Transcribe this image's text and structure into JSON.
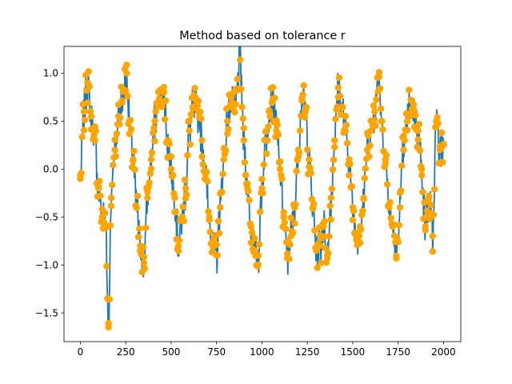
{
  "chart_data": {
    "type": "line",
    "title": "Method based on tolerance r",
    "xlabel": "",
    "ylabel": "",
    "xlim": [
      -90,
      2095
    ],
    "ylim": [
      -1.8,
      1.28
    ],
    "xticks": [
      0,
      250,
      500,
      750,
      1000,
      1250,
      1500,
      1750,
      2000
    ],
    "yticks": [
      -1.5,
      -1.0,
      -0.5,
      0.0,
      0.5,
      1.0
    ],
    "ytick_labels": [
      "−1.5",
      "−1.0",
      "−0.5",
      "0.0",
      "0.5",
      "1.0"
    ],
    "grid": false,
    "line_color": "#1f77b4",
    "marker_color": "#ffa500",
    "series": [
      {
        "role": "signal-line",
        "x": [
          0,
          20,
          40,
          60,
          80,
          100,
          120,
          140,
          155,
          170,
          190,
          210,
          230,
          255,
          270,
          290,
          310,
          330,
          350,
          370,
          390,
          410,
          430,
          460,
          480,
          500,
          520,
          540,
          560,
          580,
          600,
          620,
          650,
          670,
          690,
          710,
          730,
          750,
          770,
          790,
          810,
          830,
          850,
          880,
          900,
          920,
          940,
          960,
          980,
          1000,
          1020,
          1040,
          1060,
          1080,
          1100,
          1120,
          1140,
          1160,
          1180,
          1200,
          1220,
          1240,
          1260,
          1280,
          1300,
          1320,
          1340,
          1360,
          1380,
          1400,
          1420,
          1440,
          1460,
          1480,
          1500,
          1520,
          1540,
          1560,
          1580,
          1600,
          1620,
          1645,
          1660,
          1680,
          1700,
          1720,
          1740,
          1760,
          1780,
          1800,
          1820,
          1840,
          1860,
          1880,
          1900,
          1920,
          1940,
          1960,
          1980,
          2000
        ],
        "y": [
          -0.1,
          0.6,
          0.9,
          0.55,
          0.3,
          -0.2,
          -0.5,
          -0.6,
          -1.65,
          -0.3,
          0.2,
          0.55,
          0.7,
          1.0,
          0.5,
          0.1,
          -0.4,
          -0.8,
          -0.98,
          -0.3,
          0.1,
          0.5,
          0.7,
          0.8,
          0.3,
          0.0,
          -0.3,
          -0.8,
          -0.5,
          -0.2,
          0.4,
          0.65,
          0.6,
          0.3,
          -0.1,
          -0.5,
          -0.8,
          -0.9,
          -0.4,
          0.1,
          0.5,
          0.75,
          0.6,
          1.14,
          0.3,
          -0.2,
          -0.6,
          -0.85,
          -0.9,
          -0.2,
          0.3,
          0.6,
          0.73,
          0.4,
          0.0,
          -0.5,
          -0.93,
          -0.7,
          -0.4,
          0.2,
          0.74,
          0.6,
          0.1,
          -0.4,
          -0.85,
          -0.8,
          -0.6,
          -0.9,
          -0.3,
          0.3,
          0.85,
          0.65,
          0.4,
          0.1,
          -0.4,
          -0.7,
          -0.6,
          -0.3,
          0.2,
          0.4,
          0.6,
          0.96,
          0.5,
          0.1,
          -0.4,
          -0.6,
          -0.93,
          -0.4,
          0.2,
          0.5,
          0.72,
          0.6,
          0.4,
          0.0,
          -0.6,
          -0.3,
          -0.7,
          0.5,
          0.2,
          0.25
        ]
      }
    ]
  }
}
